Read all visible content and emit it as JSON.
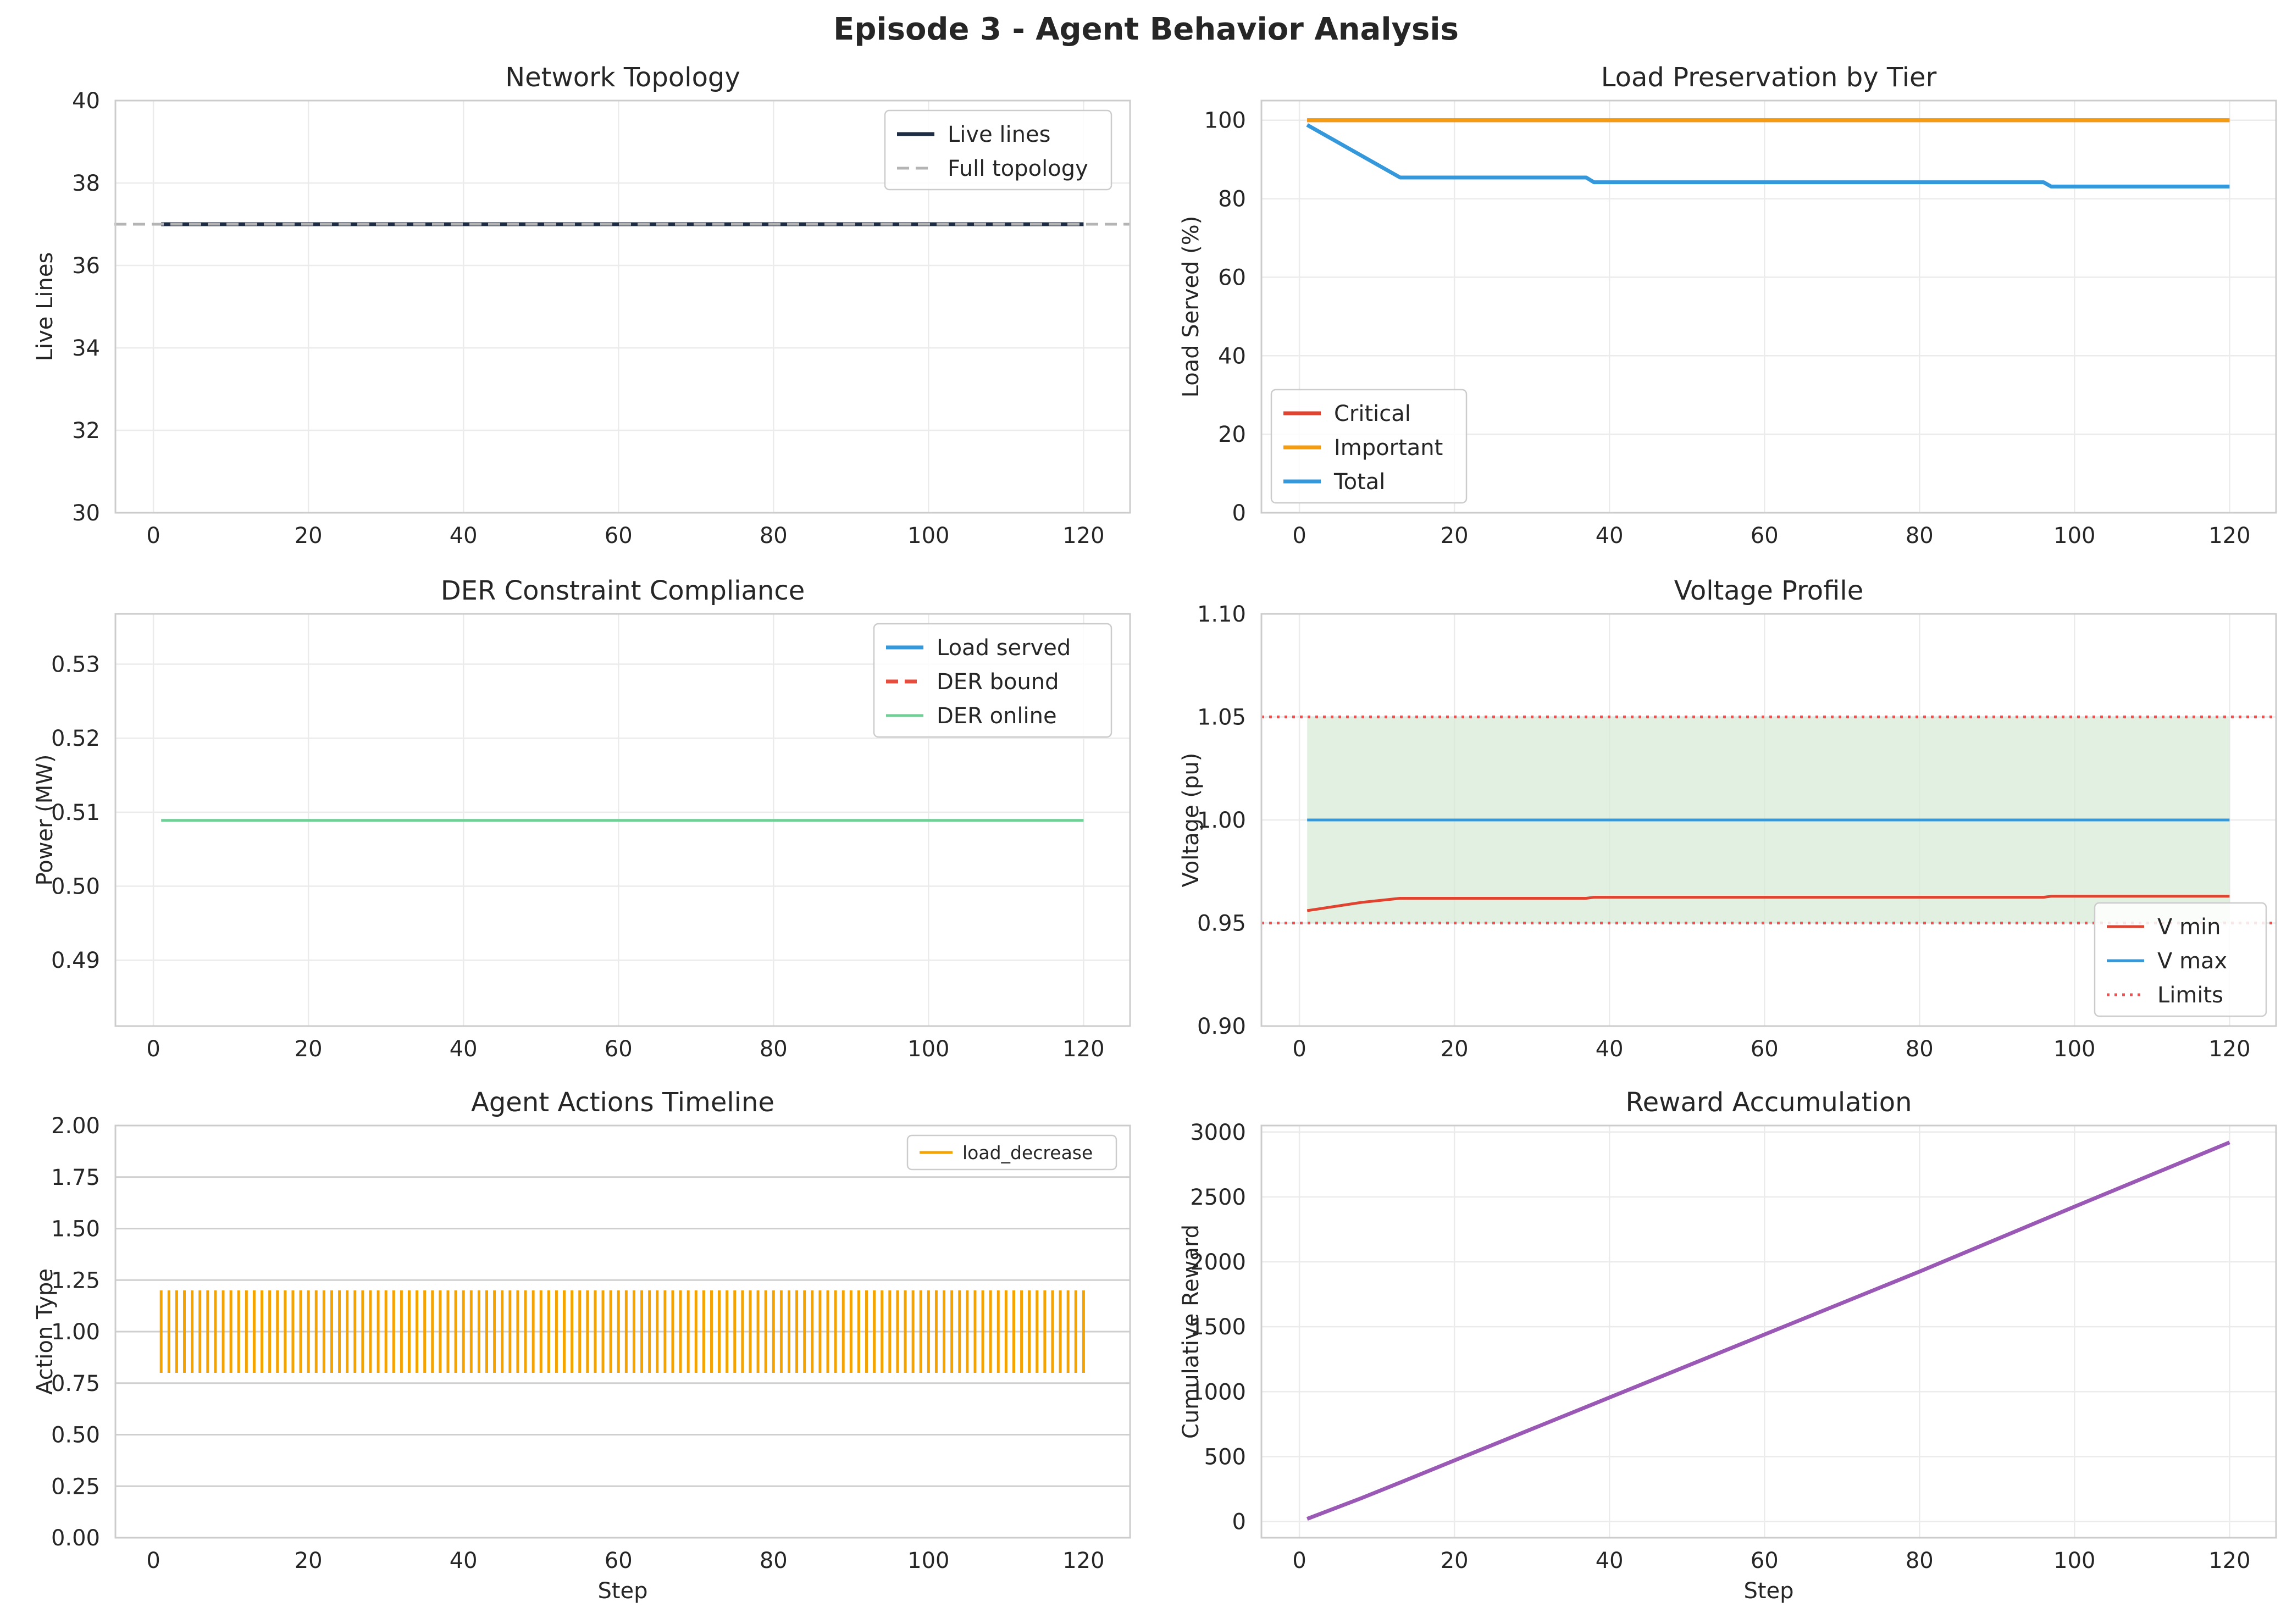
{
  "figure_title": "Episode 3 - Agent Behavior Analysis",
  "chart_data": [
    {
      "id": "topology",
      "type": "line",
      "title": "Network Topology",
      "xlabel": "",
      "ylabel": "Live Lines",
      "xlim": [
        -4.9,
        126
      ],
      "ylim": [
        30,
        40
      ],
      "xticks": [
        0,
        20,
        40,
        60,
        80,
        100,
        120
      ],
      "yticks": [
        30,
        32,
        34,
        36,
        38,
        40
      ],
      "ytick_decimals": 0,
      "grid": true,
      "legend_position": "top-right",
      "series": [
        {
          "name": "Live lines",
          "color": "#1f2d44",
          "width": 7,
          "x": [
            1,
            120
          ],
          "y": [
            37,
            37
          ]
        }
      ],
      "hlines": [
        {
          "name": "Full topology",
          "y": 37,
          "color": "#b4b4b4",
          "width": 5,
          "dash": "22,12"
        }
      ]
    },
    {
      "id": "load",
      "type": "line",
      "title": "Load Preservation by Tier",
      "xlabel": "",
      "ylabel": "Load Served (%)",
      "xlim": [
        -4.9,
        126
      ],
      "ylim": [
        0,
        105
      ],
      "xticks": [
        0,
        20,
        40,
        60,
        80,
        100,
        120
      ],
      "yticks": [
        0,
        20,
        40,
        60,
        80,
        100
      ],
      "ytick_decimals": 0,
      "grid": true,
      "legend_position": "lower-left",
      "series": [
        {
          "name": "Critical",
          "color": "#e0432f",
          "width": 7,
          "x": [
            1,
            120
          ],
          "y": [
            100,
            100
          ]
        },
        {
          "name": "Important",
          "color": "#f39c12",
          "width": 7,
          "x": [
            1,
            120
          ],
          "y": [
            100,
            100
          ]
        },
        {
          "name": "Total",
          "color": "#3498db",
          "width": 7,
          "x": [
            1,
            13,
            37,
            38,
            96,
            97,
            120
          ],
          "y": [
            98.8,
            85.4,
            85.4,
            84.2,
            84.2,
            83.1,
            83.1
          ]
        }
      ]
    },
    {
      "id": "der",
      "type": "line",
      "title": "DER Constraint Compliance",
      "xlabel": "",
      "ylabel": "Power (MW)",
      "xlim": [
        -4.9,
        126
      ],
      "ylim": [
        0.4811,
        0.5368
      ],
      "xticks": [
        0,
        20,
        40,
        60,
        80,
        100,
        120
      ],
      "yticks": [
        0.49,
        0.5,
        0.51,
        0.52,
        0.53
      ],
      "ytick_decimals": 2,
      "grid": true,
      "legend_position": "top-right",
      "series": [
        {
          "name": "Load served",
          "color": "#3498db",
          "width": 7,
          "x": [],
          "y": []
        },
        {
          "name": "DER bound",
          "color": "#e74c3c",
          "width": 7,
          "dash": "22,12",
          "x": [],
          "y": []
        },
        {
          "name": "DER online",
          "color": "#6fcf97",
          "width": 5,
          "x": [
            1,
            120
          ],
          "y": [
            0.5089,
            0.5089
          ]
        }
      ]
    },
    {
      "id": "voltage",
      "type": "line",
      "title": "Voltage Profile",
      "xlabel": "",
      "ylabel": "Voltage (pu)",
      "xlim": [
        -4.9,
        126
      ],
      "ylim": [
        0.9,
        1.1
      ],
      "xticks": [
        0,
        20,
        40,
        60,
        80,
        100,
        120
      ],
      "yticks": [
        0.9,
        0.95,
        1.0,
        1.05,
        1.1
      ],
      "ytick_decimals": 2,
      "grid": true,
      "legend_position": "lower-right",
      "band": {
        "ymin": 0.95,
        "ymax": 1.05,
        "x": [
          1,
          120
        ],
        "color": "#d6ead6"
      },
      "series": [
        {
          "name": "V min",
          "color": "#e0432f",
          "width": 5,
          "x": [
            1,
            8,
            13,
            37,
            38,
            96,
            97,
            120
          ],
          "y": [
            0.956,
            0.96,
            0.962,
            0.962,
            0.9625,
            0.9625,
            0.963,
            0.963
          ]
        },
        {
          "name": "V max",
          "color": "#3498db",
          "width": 5,
          "x": [
            1,
            120
          ],
          "y": [
            1.0,
            1.0
          ]
        }
      ],
      "hlines": [
        {
          "name": "Limits",
          "y": 1.05,
          "color": "#f05050",
          "width": 5,
          "dash": "5,9"
        },
        {
          "name": "",
          "y": 0.95,
          "color": "#f05050",
          "width": 5,
          "dash": "5,9"
        }
      ]
    },
    {
      "id": "actions",
      "type": "line",
      "title": "Agent Actions Timeline",
      "xlabel": "Step",
      "ylabel": "Action Type",
      "xlim": [
        -4.9,
        126
      ],
      "ylim": [
        0,
        2
      ],
      "xticks": [
        0,
        20,
        40,
        60,
        80,
        100,
        120
      ],
      "yticks": [
        0.0,
        0.25,
        0.5,
        0.75,
        1.0,
        1.25,
        1.5,
        1.75,
        2.0
      ],
      "ytick_decimals": 2,
      "grid": true,
      "legend_position": "top-right",
      "events": {
        "name": "load_decrease",
        "color": "#f5a300",
        "y": 1,
        "ymin": 0.8,
        "ymax": 1.2,
        "x_start": 1,
        "x_end": 120,
        "x_step": 1
      }
    },
    {
      "id": "reward",
      "type": "line",
      "title": "Reward Accumulation",
      "xlabel": "Step",
      "ylabel": "Cumulative Reward",
      "xlim": [
        -4.9,
        126
      ],
      "ylim": [
        -125,
        3050
      ],
      "xticks": [
        0,
        20,
        40,
        60,
        80,
        100,
        120
      ],
      "yticks": [
        0,
        500,
        1000,
        1500,
        2000,
        2500,
        3000
      ],
      "ytick_decimals": 0,
      "grid": true,
      "series": [
        {
          "name": "",
          "color": "#9b59b6",
          "width": 7,
          "x": [
            1,
            8,
            13,
            20,
            40,
            60,
            80,
            100,
            120
          ],
          "y": [
            20,
            180,
            300,
            470,
            955,
            1440,
            1925,
            2425,
            2920
          ]
        }
      ]
    }
  ]
}
